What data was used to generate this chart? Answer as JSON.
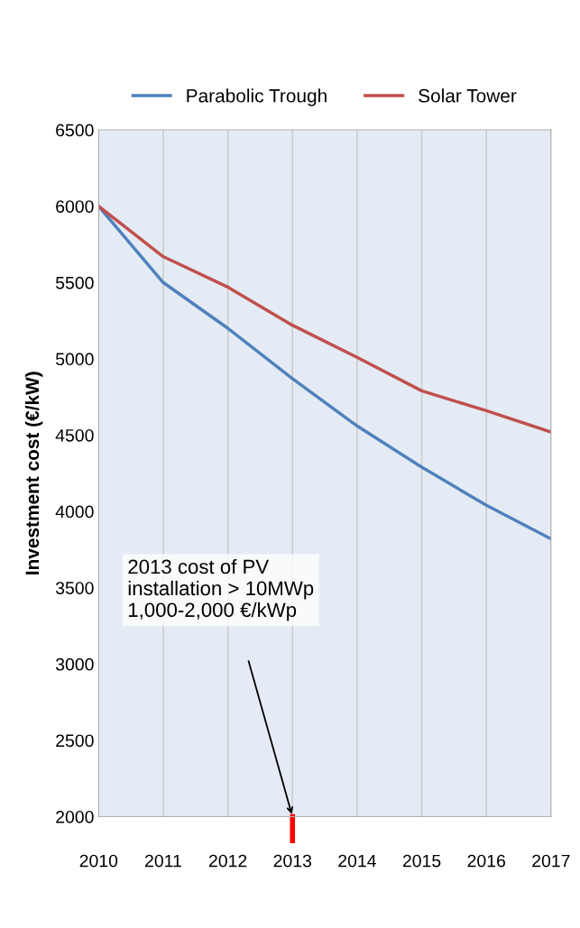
{
  "chart_data": {
    "type": "line",
    "ylabel": "Investment cost (€/kW)",
    "x": [
      2010,
      2011,
      2012,
      2013,
      2014,
      2015,
      2016,
      2017
    ],
    "xlim": [
      2010,
      2017
    ],
    "xticks": [
      2010,
      2011,
      2012,
      2013,
      2014,
      2015,
      2016,
      2017
    ],
    "ylim": [
      2000,
      6500
    ],
    "yticks": [
      2000,
      2500,
      3000,
      3500,
      4000,
      4500,
      5000,
      5500,
      6000,
      6500
    ],
    "series": [
      {
        "name": "Parabolic Trough",
        "color": "#4f81bd",
        "values": [
          6000,
          5500,
          5200,
          4870,
          4560,
          4290,
          4040,
          3820
        ]
      },
      {
        "name": "Solar Tower",
        "color": "#c0504d",
        "values": [
          6000,
          5670,
          5470,
          5220,
          5010,
          4790,
          4660,
          4520
        ]
      }
    ],
    "annotations": [
      "2013 cost of PV\ninstallation > 10MWp\n1,000-2,000 €/kWp"
    ],
    "grid": "x",
    "legend": "top"
  }
}
